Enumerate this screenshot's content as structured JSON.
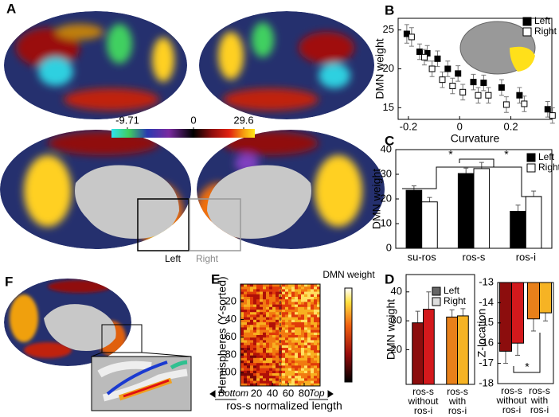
{
  "panels": [
    "A",
    "B",
    "C",
    "D",
    "E",
    "F"
  ],
  "brain_labels": [
    "Left",
    "Right"
  ],
  "colorbar": {
    "ticks": [
      -9.71,
      0,
      29.6
    ]
  },
  "chart_data": [
    {
      "type": "scatter",
      "xlabel": "Curvature",
      "ylabel": "DMN weight",
      "x": [
        -0.2,
        -0.15,
        -0.12,
        -0.08,
        -0.04,
        0.0,
        0.06,
        0.1,
        0.17,
        0.24,
        0.35
      ],
      "series": [
        {
          "name": "Left",
          "color": "#000000",
          "marker": "filled",
          "values": [
            24.5,
            22.2,
            22.0,
            21.3,
            20.0,
            19.4,
            18.3,
            18.2,
            17.6,
            16.6,
            14.8
          ],
          "errors": [
            1.2,
            1.0,
            1.0,
            1.0,
            1.0,
            1.0,
            1.0,
            1.0,
            1.0,
            1.0,
            1.0
          ]
        },
        {
          "name": "Right",
          "color": "#000000",
          "marker": "open",
          "values": [
            24.1,
            21.5,
            20.0,
            18.6,
            17.8,
            17.0,
            16.6,
            16.6,
            15.4,
            15.5,
            14.0
          ],
          "errors": [
            1.2,
            1.0,
            1.0,
            1.0,
            1.0,
            1.0,
            1.0,
            1.0,
            1.0,
            1.0,
            1.0
          ]
        }
      ],
      "xlim": [
        -0.24,
        0.36
      ],
      "xticks": [
        -0.2,
        0,
        0.2
      ],
      "ylim": [
        13.5,
        26.5
      ],
      "yticks": [
        15,
        20,
        25
      ]
    },
    {
      "type": "bar",
      "ylabel": "DMN weight",
      "categories": [
        "su-ros",
        "ros-s",
        "ros-i"
      ],
      "series": [
        {
          "name": "Left",
          "color": "#000000",
          "values": [
            23.5,
            30.3,
            15.0
          ],
          "errors": [
            1.8,
            2.2,
            2.5
          ]
        },
        {
          "name": "Right",
          "color": "#ffffff",
          "values": [
            18.8,
            32.3,
            21.0
          ],
          "errors": [
            1.8,
            2.5,
            2.2
          ]
        }
      ],
      "ylim": [
        0,
        40
      ],
      "yticks": [
        0,
        10,
        20,
        30,
        40
      ],
      "annotations": [
        "*",
        "*"
      ]
    },
    {
      "type": "bar",
      "ylabel": "DMN weight",
      "categories": [
        [
          "ros-s",
          "without",
          "ros-i"
        ],
        [
          "ros-s",
          "with",
          "ros-i"
        ]
      ],
      "series": [
        {
          "name": "Left",
          "color": "#666666",
          "bar_colors": [
            "#8c0d0d",
            "#e8801a"
          ],
          "values": [
            29.3,
            31.3
          ],
          "errors": [
            4.0,
            2.5
          ]
        },
        {
          "name": "Right",
          "color": "#dddddd",
          "bar_colors": [
            "#d3191c",
            "#f6b324"
          ],
          "values": [
            34.0,
            31.7
          ],
          "errors": [
            6.0,
            2.5
          ]
        }
      ],
      "ylim": [
        8,
        46
      ],
      "yticks": [
        20,
        30,
        40
      ]
    },
    {
      "type": "bar",
      "ylabel": "Z-location",
      "categories": [
        [
          "ros-s",
          "without",
          "ros-i"
        ],
        [
          "ros-s",
          "with",
          "ros-i"
        ]
      ],
      "series": [
        {
          "bar_colors": [
            "#8c0d0d",
            "#e8801a"
          ],
          "values": [
            -16.4,
            -14.8
          ],
          "errors": [
            0.6,
            0.6
          ]
        },
        {
          "bar_colors": [
            "#d3191c",
            "#f6b324"
          ],
          "values": [
            -16.0,
            -14.5
          ],
          "errors": [
            0.6,
            0.4
          ]
        }
      ],
      "ylim": [
        -18,
        -13
      ],
      "yticks": [
        -13,
        -14,
        -15,
        -16,
        -17,
        -18
      ],
      "annotations": [
        "*"
      ]
    },
    {
      "type": "heatmap",
      "xlabel": "ros-s normalized length",
      "ylabel": "Hemispheres (Y-sorted)",
      "colorbar_label": "DMN weight",
      "x_end_labels": [
        "Bottom",
        "Top"
      ],
      "xlim": [
        0,
        100
      ],
      "xticks": [
        20,
        40,
        60,
        80
      ],
      "ylim": [
        0,
        115
      ],
      "yticks": [
        20,
        40,
        60,
        80,
        100
      ],
      "y_inverted": true,
      "vline": 50
    }
  ]
}
